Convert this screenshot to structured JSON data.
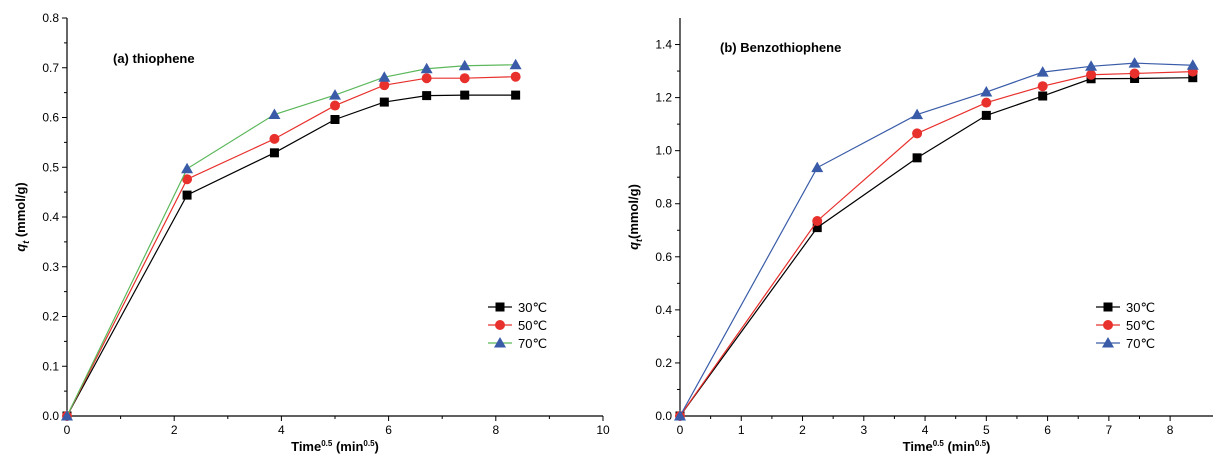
{
  "chart_data": [
    {
      "type": "line",
      "title": "(a) thiophene",
      "xlabel": {
        "base": "Time",
        "sup": "0.5",
        "paren_open": " (min",
        "paren_sup": "0.5",
        "paren_close": ")"
      },
      "ylabel": {
        "base": "q",
        "sub": "t",
        "rest": " (mmol/g)"
      },
      "xlim": [
        0,
        10
      ],
      "ylim": [
        0,
        0.8
      ],
      "xticks": [
        0,
        2,
        4,
        6,
        8,
        10
      ],
      "xtick_labels": [
        "0",
        "2",
        "4",
        "6",
        "8",
        "10"
      ],
      "yticks": [
        0,
        0.1,
        0.2,
        0.3,
        0.4,
        0.5,
        0.6,
        0.7,
        0.8
      ],
      "ytick_labels": [
        "0.0",
        "0.1",
        "0.2",
        "0.3",
        "0.4",
        "0.5",
        "0.6",
        "0.7",
        "0.8"
      ],
      "legend_position": "bottom-right",
      "grid": false,
      "series": [
        {
          "name": "30℃",
          "color": "#000000",
          "marker": "square",
          "x": [
            0,
            2.24,
            3.87,
            5.0,
            5.92,
            6.71,
            7.42,
            8.37
          ],
          "y": [
            0.0,
            0.444,
            0.529,
            0.596,
            0.631,
            0.644,
            0.645,
            0.645
          ]
        },
        {
          "name": "50℃",
          "color": "#e8302c",
          "marker": "circle",
          "x": [
            0,
            2.24,
            3.87,
            5.0,
            5.92,
            6.71,
            7.42,
            8.37
          ],
          "y": [
            0.0,
            0.476,
            0.557,
            0.624,
            0.665,
            0.679,
            0.679,
            0.682
          ]
        },
        {
          "name": "70℃",
          "color": "#3a5ca8",
          "line_color": "#5cb85c",
          "marker": "triangle",
          "x": [
            0,
            2.24,
            3.87,
            5.0,
            5.92,
            6.71,
            7.42,
            8.37
          ],
          "y": [
            0.0,
            0.497,
            0.606,
            0.645,
            0.681,
            0.698,
            0.704,
            0.706
          ]
        }
      ]
    },
    {
      "type": "line",
      "title": "(b) Benzothiophene",
      "xlabel": {
        "base": "Time",
        "sup": "0.5",
        "paren_open": " (min",
        "paren_sup": "0.5",
        "paren_close": ")"
      },
      "ylabel": {
        "base": "q",
        "sub": "t",
        "rest": "(mmol/g)"
      },
      "xlim": [
        0,
        8.7
      ],
      "ylim": [
        0,
        1.5
      ],
      "xticks": [
        0,
        1,
        2,
        3,
        4,
        5,
        6,
        7,
        8
      ],
      "xtick_labels": [
        "0",
        "1",
        "2",
        "3",
        "4",
        "5",
        "6",
        "7",
        "8"
      ],
      "yticks": [
        0,
        0.2,
        0.4,
        0.6,
        0.8,
        1.0,
        1.2,
        1.4
      ],
      "ytick_labels": [
        "0.0",
        "0.2",
        "0.4",
        "0.6",
        "0.8",
        "1.0",
        "1.2",
        "1.4"
      ],
      "legend_position": "bottom-right",
      "grid": false,
      "series": [
        {
          "name": "30℃",
          "color": "#000000",
          "marker": "square",
          "x": [
            0,
            2.24,
            3.87,
            5.0,
            5.92,
            6.71,
            7.42,
            8.37
          ],
          "y": [
            0.0,
            0.71,
            0.973,
            1.133,
            1.206,
            1.271,
            1.272,
            1.275
          ]
        },
        {
          "name": "50℃",
          "color": "#e8302c",
          "marker": "circle",
          "x": [
            0,
            2.24,
            3.87,
            5.0,
            5.92,
            6.71,
            7.42,
            8.37
          ],
          "y": [
            0.0,
            0.735,
            1.065,
            1.181,
            1.243,
            1.286,
            1.291,
            1.298
          ]
        },
        {
          "name": "70℃",
          "color": "#3a5ca8",
          "marker": "triangle",
          "x": [
            0,
            2.24,
            3.87,
            5.0,
            5.92,
            6.71,
            7.42,
            8.37
          ],
          "y": [
            0.0,
            0.936,
            1.136,
            1.221,
            1.296,
            1.318,
            1.33,
            1.322
          ]
        }
      ]
    }
  ]
}
